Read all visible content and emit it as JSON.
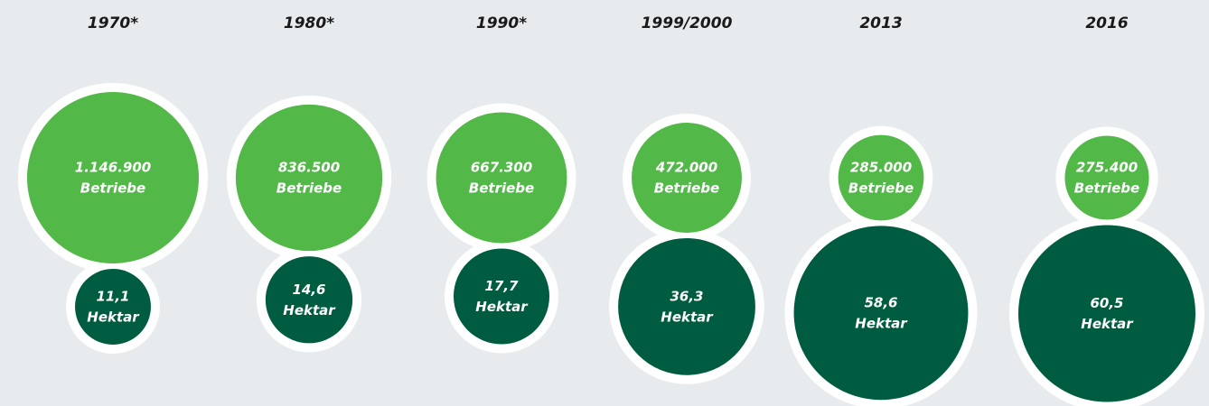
{
  "chart_data": {
    "type": "bubble",
    "categories": [
      "1970*",
      "1980*",
      "1990*",
      "1999/2000",
      "2013",
      "2016"
    ],
    "series": [
      {
        "name": "Betriebe",
        "color": "#52b848",
        "values": [
          1146900,
          836500,
          667300,
          472000,
          285000,
          275400
        ],
        "value_labels": [
          "1.146.900",
          "836.500",
          "667.300",
          "472.000",
          "285.000",
          "275.400"
        ]
      },
      {
        "name": "Hektar",
        "color": "#005c40",
        "values": [
          11.1,
          14.6,
          17.7,
          36.3,
          58.6,
          60.5
        ],
        "value_labels": [
          "11,1",
          "14,6",
          "17,7",
          "36,3",
          "58,6",
          "60,5"
        ]
      }
    ]
  }
}
